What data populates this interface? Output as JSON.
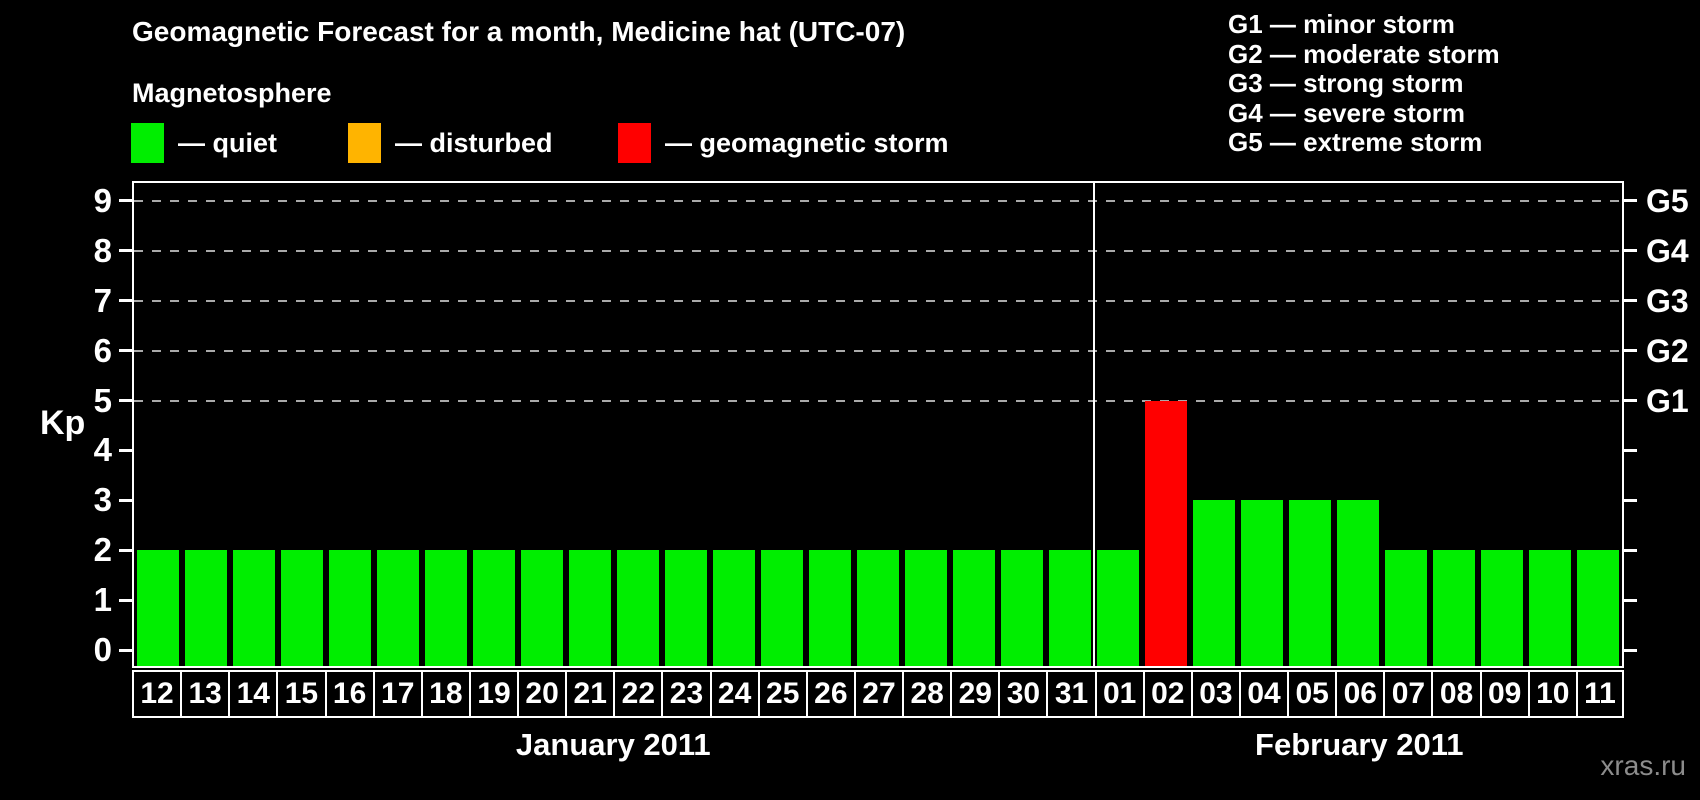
{
  "header": {
    "title": "Geomagnetic Forecast for a month, Medicine hat (UTC-07)"
  },
  "magnetosphere_legend": {
    "heading": "Magnetosphere",
    "items": [
      {
        "name": "quiet",
        "label": "— quiet",
        "color": "#00ee00"
      },
      {
        "name": "disturbed",
        "label": "— disturbed",
        "color": "#ffb400"
      },
      {
        "name": "geomagnetic-storm",
        "label": "— geomagnetic storm",
        "color": "#ff0000"
      }
    ]
  },
  "storm_scale_legend": {
    "items": [
      "G1 — minor storm",
      "G2 — moderate storm",
      "G3 — strong storm",
      "G4 — severe storm",
      "G5 — extreme storm"
    ]
  },
  "watermark": "xras.ru",
  "chart_data": {
    "type": "bar",
    "title": "Geomagnetic Forecast for a month, Medicine hat (UTC-07)",
    "ylabel": "Kp",
    "ylim": [
      0,
      9
    ],
    "y_ticks": [
      0,
      1,
      2,
      3,
      4,
      5,
      6,
      7,
      8,
      9
    ],
    "gridlines_at_kp": [
      5,
      6,
      7,
      8,
      9
    ],
    "grid": "dashed horizontal lines at storm levels G1–G5",
    "legend_position": "top",
    "right_axis": {
      "labels": [
        {
          "kp": 5,
          "label": "G1"
        },
        {
          "kp": 6,
          "label": "G2"
        },
        {
          "kp": 7,
          "label": "G3"
        },
        {
          "kp": 8,
          "label": "G4"
        },
        {
          "kp": 9,
          "label": "G5"
        }
      ]
    },
    "status_colors": {
      "quiet": "#00ee00",
      "disturbed": "#ffb400",
      "storm": "#ff0000"
    },
    "months": [
      {
        "label": "January 2011",
        "days": [
          {
            "day": "12",
            "kp": 2,
            "status": "quiet"
          },
          {
            "day": "13",
            "kp": 2,
            "status": "quiet"
          },
          {
            "day": "14",
            "kp": 2,
            "status": "quiet"
          },
          {
            "day": "15",
            "kp": 2,
            "status": "quiet"
          },
          {
            "day": "16",
            "kp": 2,
            "status": "quiet"
          },
          {
            "day": "17",
            "kp": 2,
            "status": "quiet"
          },
          {
            "day": "18",
            "kp": 2,
            "status": "quiet"
          },
          {
            "day": "19",
            "kp": 2,
            "status": "quiet"
          },
          {
            "day": "20",
            "kp": 2,
            "status": "quiet"
          },
          {
            "day": "21",
            "kp": 2,
            "status": "quiet"
          },
          {
            "day": "22",
            "kp": 2,
            "status": "quiet"
          },
          {
            "day": "23",
            "kp": 2,
            "status": "quiet"
          },
          {
            "day": "24",
            "kp": 2,
            "status": "quiet"
          },
          {
            "day": "25",
            "kp": 2,
            "status": "quiet"
          },
          {
            "day": "26",
            "kp": 2,
            "status": "quiet"
          },
          {
            "day": "27",
            "kp": 2,
            "status": "quiet"
          },
          {
            "day": "28",
            "kp": 2,
            "status": "quiet"
          },
          {
            "day": "29",
            "kp": 2,
            "status": "quiet"
          },
          {
            "day": "30",
            "kp": 2,
            "status": "quiet"
          },
          {
            "day": "31",
            "kp": 2,
            "status": "quiet"
          }
        ]
      },
      {
        "label": "February 2011",
        "days": [
          {
            "day": "01",
            "kp": 2,
            "status": "quiet"
          },
          {
            "day": "02",
            "kp": 5,
            "status": "storm"
          },
          {
            "day": "03",
            "kp": 3,
            "status": "quiet"
          },
          {
            "day": "04",
            "kp": 3,
            "status": "quiet"
          },
          {
            "day": "05",
            "kp": 3,
            "status": "quiet"
          },
          {
            "day": "06",
            "kp": 3,
            "status": "quiet"
          },
          {
            "day": "07",
            "kp": 2,
            "status": "quiet"
          },
          {
            "day": "08",
            "kp": 2,
            "status": "quiet"
          },
          {
            "day": "09",
            "kp": 2,
            "status": "quiet"
          },
          {
            "day": "10",
            "kp": 2,
            "status": "quiet"
          },
          {
            "day": "11",
            "kp": 2,
            "status": "quiet"
          }
        ]
      }
    ]
  }
}
